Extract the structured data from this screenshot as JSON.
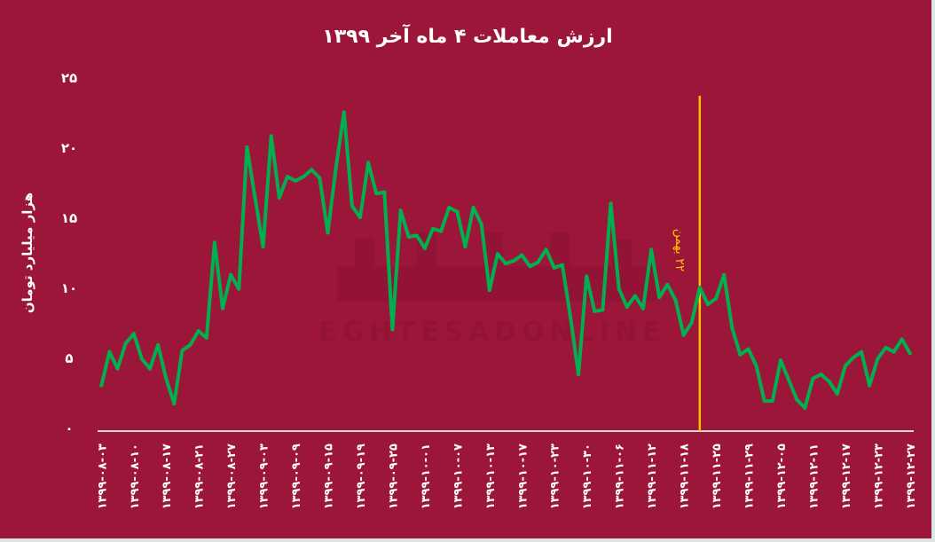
{
  "chart_data": {
    "type": "line",
    "title": "ارزش معاملات ۴ ماه آخر ۱۳۹۹",
    "xlabel": "",
    "ylabel": "هزار میلیارد تومان",
    "ylim": [
      0,
      25
    ],
    "yticks": [
      0,
      5,
      10,
      15,
      20,
      25
    ],
    "ytick_labels": [
      "۰",
      "۵",
      "۱۰",
      "۱۵",
      "۲۰",
      "۲۵"
    ],
    "grid": false,
    "x_tick_labels": [
      "۱۳۹۹-۰۸-۰۳",
      "۱۳۹۹-۰۸-۱۰",
      "۱۳۹۹-۰۸-۱۷",
      "۱۳۹۹-۰۸-۲۱",
      "۱۳۹۹-۰۸-۲۷",
      "۱۳۹۹-۰۹-۰۳",
      "۱۳۹۹-۰۹-۰۹",
      "۱۳۹۹-۰۹-۱۵",
      "۱۳۹۹-۰۹-۱۹",
      "۱۳۹۹-۰۹-۲۵",
      "۱۳۹۹-۱۰-۰۱",
      "۱۳۹۹-۱۰-۰۷",
      "۱۳۹۹-۱۰-۱۳",
      "۱۳۹۹-۱۰-۱۷",
      "۱۳۹۹-۱۰-۲۳",
      "۱۳۹۹-۱۰-۳۰",
      "۱۳۹۹-۱۱-۰۶",
      "۱۳۹۹-۱۱-۱۲",
      "۱۳۹۹-۱۱-۱۸",
      "۱۳۹۹-۱۱-۲۵",
      "۱۳۹۹-۱۱-۲۹",
      "۱۳۹۹-۱۲-۰۵",
      "۱۳۹۹-۱۲-۱۱",
      "۱۳۹۹-۱۲-۱۷",
      "۱۳۹۹-۱۲-۲۳",
      "۱۳۹۹-۱۲-۲۷"
    ],
    "x_tick_every": 4,
    "series": [
      {
        "color": "#00b050",
        "values": [
          3.0,
          5.4,
          4.2,
          6.0,
          6.7,
          4.9,
          4.2,
          5.9,
          3.5,
          1.7,
          5.5,
          5.9,
          6.9,
          6.4,
          13.2,
          8.5,
          10.9,
          9.9,
          20.0,
          16.4,
          12.9,
          20.8,
          16.4,
          17.9,
          17.6,
          17.9,
          18.4,
          17.8,
          13.9,
          18.5,
          22.5,
          15.8,
          15.0,
          18.9,
          16.7,
          16.8,
          7.0,
          15.5,
          13.6,
          13.7,
          12.8,
          14.2,
          14.0,
          15.7,
          15.4,
          12.9,
          15.7,
          14.5,
          9.8,
          12.4,
          11.7,
          11.9,
          12.3,
          11.5,
          11.8,
          12.7,
          11.4,
          11.6,
          7.9,
          3.8,
          10.8,
          8.3,
          8.4,
          16.0,
          9.9,
          8.6,
          9.4,
          8.5,
          12.7,
          9.3,
          10.2,
          9.1,
          6.6,
          7.5,
          10.0,
          8.8,
          9.2,
          10.9,
          7.1,
          5.2,
          5.6,
          4.4,
          1.9,
          1.9,
          4.8,
          3.4,
          2.0,
          1.4,
          3.5,
          3.8,
          3.3,
          2.4,
          4.4,
          5.0,
          5.4,
          3.0,
          4.9,
          5.7,
          5.4,
          6.3,
          5.3
        ]
      }
    ],
    "annotation": {
      "label": "۲۲ بهمن",
      "x_index": 74,
      "color": "#ffc000"
    },
    "watermark": "اقتصادآنلاین EGHTESADONLINE",
    "background": "#9c1639",
    "axis_line_color": "#d9d9d9"
  }
}
